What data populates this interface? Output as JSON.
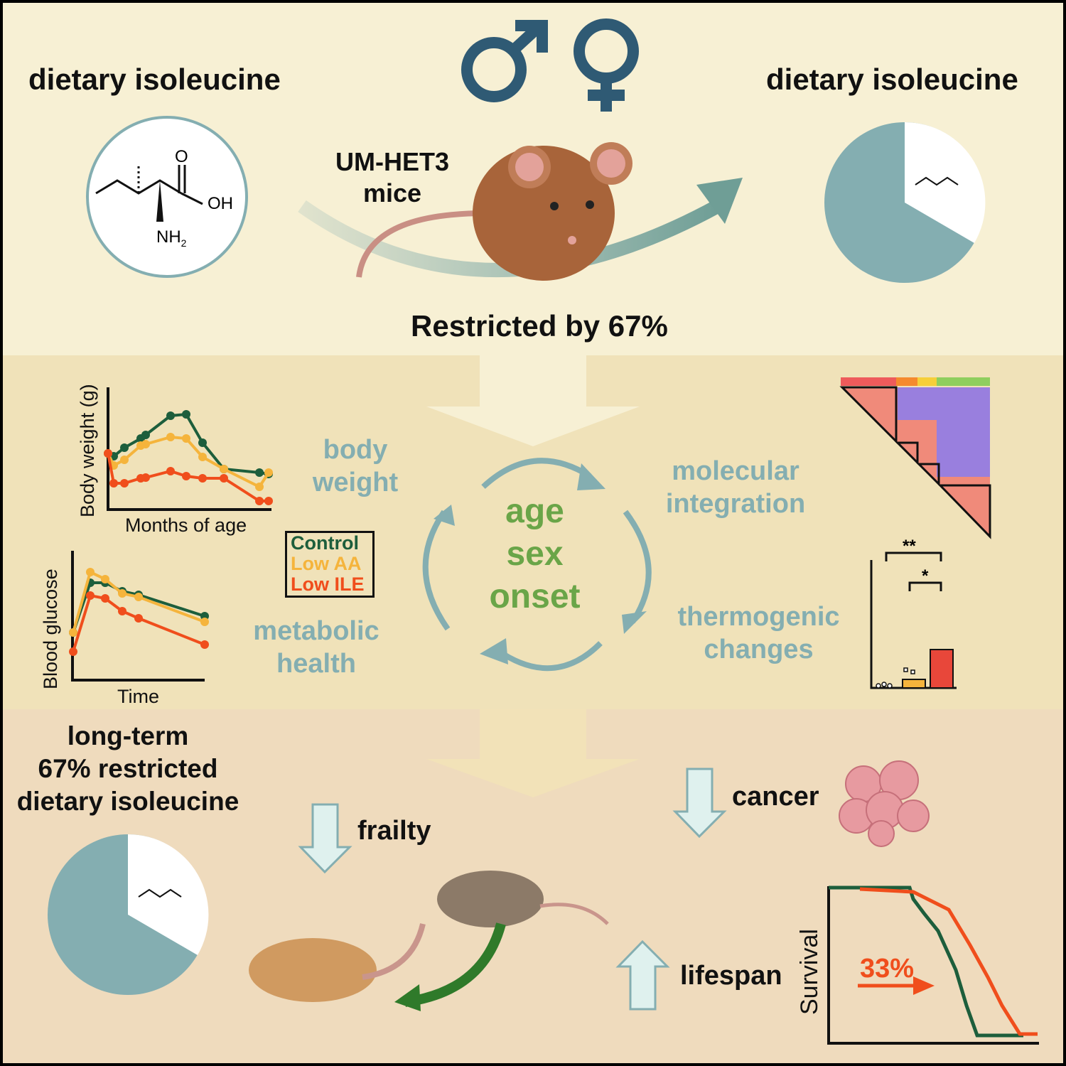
{
  "top": {
    "left_title": "dietary isoleucine",
    "right_title": "dietary isoleucine",
    "mice_label_line1": "UM-HET3",
    "mice_label_line2": "mice",
    "restriction": "Restricted by 67%",
    "molecule_labels": {
      "carbonyl": "O",
      "hydroxyl": "OH",
      "amine": "NH",
      "amine_sub": "2"
    },
    "sex_symbols": [
      "male-symbol",
      "female-symbol"
    ]
  },
  "middle": {
    "body_weight_chart": {
      "ylabel": "Body weight (g)",
      "xlabel": "Months of age"
    },
    "glucose_chart": {
      "ylabel": "Blood glucose",
      "xlabel": "Time"
    },
    "legend": [
      {
        "label": "Control",
        "color": "#1d5e3c"
      },
      {
        "label": "Low AA",
        "color": "#f5b43c"
      },
      {
        "label": "Low ILE",
        "color": "#f04e1c"
      }
    ],
    "labels": {
      "body_weight_1": "body",
      "body_weight_2": "weight",
      "metabolic_1": "metabolic",
      "metabolic_2": "health",
      "molecular_1": "molecular",
      "molecular_2": "integration",
      "thermo_1": "thermogenic",
      "thermo_2": "changes"
    },
    "center": {
      "line1": "age",
      "line2": "sex",
      "line3": "onset"
    },
    "significance": {
      "top": "**",
      "bottom": "*"
    }
  },
  "bottom": {
    "title_line1": "long-term",
    "title_line2": "67% restricted",
    "title_line3": "dietary isoleucine",
    "frailty": "frailty",
    "cancer": "cancer",
    "lifespan": "lifespan",
    "survival_ylabel": "Survival",
    "survival_gain": "33%"
  },
  "colors": {
    "teal": "#84aeb1",
    "green_text": "#6aa548",
    "control": "#1d5e3c",
    "low_aa": "#f5b43c",
    "low_ile": "#f04e1c",
    "male_female": "#2f5a74"
  }
}
